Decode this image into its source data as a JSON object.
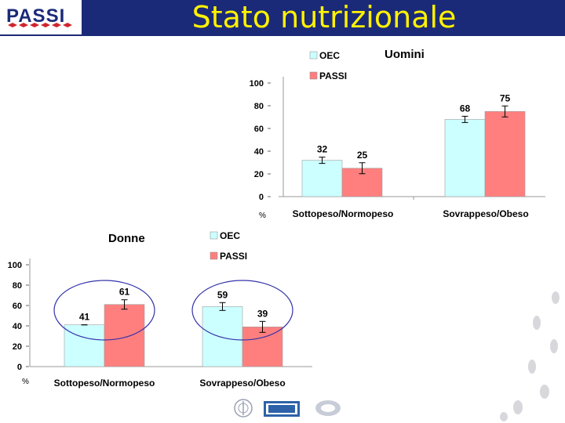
{
  "header": {
    "logo_text": "PASSI",
    "title": "Stato nutrizionale"
  },
  "colors": {
    "header_bg": "#1b2a78",
    "title_color": "#fff200",
    "oec": "#ccffff",
    "passi": "#ff7f7f",
    "ellipse": "#3333aa",
    "axis_text": "#000000"
  },
  "chart_data": [
    {
      "type": "bar",
      "title": "Uomini",
      "ylabel": "%",
      "ylim": [
        0,
        100
      ],
      "yticks": [
        "0",
        "20",
        "40",
        "60",
        "80",
        "100"
      ],
      "categories": [
        "Sottopeso/Normopeso",
        "Sovrappeso/Obeso"
      ],
      "series": [
        {
          "name": "OEC",
          "values": [
            32,
            68
          ],
          "labels": [
            "32",
            "68"
          ]
        },
        {
          "name": "PASSI",
          "values": [
            25,
            75
          ],
          "labels": [
            "25",
            "75"
          ]
        }
      ],
      "error_bars": true,
      "legend": "top"
    },
    {
      "type": "bar",
      "title": "Donne",
      "ylabel": "%",
      "ylim": [
        0,
        100
      ],
      "yticks": [
        "0",
        "20",
        "40",
        "60",
        "80",
        "100"
      ],
      "categories": [
        "Sottopeso/Normopeso",
        "Sovrappeso/Obeso"
      ],
      "series": [
        {
          "name": "OEC",
          "values": [
            41,
            59
          ],
          "labels": [
            "41",
            "59"
          ]
        },
        {
          "name": "PASSI",
          "values": [
            61,
            39
          ],
          "labels": [
            "61",
            "39"
          ]
        }
      ],
      "error_bars": true,
      "legend": "top",
      "highlight_ellipses": true
    }
  ],
  "footer": {
    "logos": [
      "ccm-logo",
      "cnesps-logo",
      "iss-seal"
    ]
  }
}
